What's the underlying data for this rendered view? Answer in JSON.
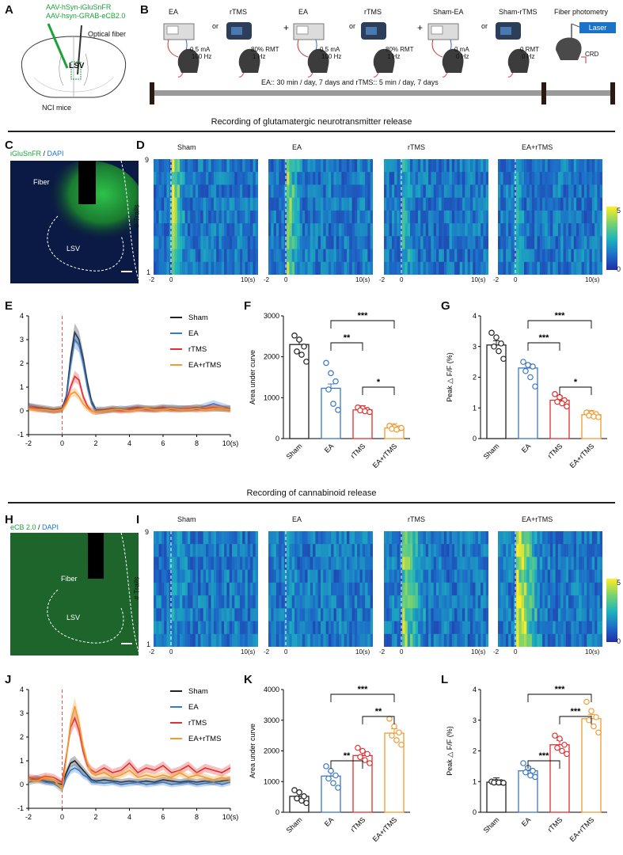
{
  "panelA": {
    "letter": "A",
    "virus1": "AAV-hSyn-iGluSnFR",
    "virus2": "AAV-hsyn-GRAB-eCB2.0",
    "optical_fiber": "Optical fiber",
    "region": "LSV",
    "mice": "NCI mice"
  },
  "panelB": {
    "letter": "B",
    "groups": [
      {
        "title": "EA",
        "line1": "0.5 mA",
        "line2": "100 Hz"
      },
      {
        "title": "rTMS",
        "line1": "80% RMT",
        "line2": "1 Hz"
      },
      {
        "title": "EA",
        "line1": "0.5 mA",
        "line2": "100 Hz"
      },
      {
        "title": "rTMS",
        "line1": "80% RMT",
        "line2": "1 Hz"
      },
      {
        "title": "Sham-EA",
        "line1": "0 mA",
        "line2": "0 Hz"
      },
      {
        "title": "Sham-rTMS",
        "line1": "0 RMT",
        "line2": "0 Hz"
      }
    ],
    "or": "or",
    "plus": "+",
    "fiber_photometry": "Fiber photometry",
    "laser": "Laser",
    "crd": "CRD",
    "timeline": "EA:: 30 min / day, 7 days and rTMS:: 5 min / day, 7 days"
  },
  "section1_title": "Recording of glutamatergic neurotransmitter release",
  "section2_title": "Recording of cannabinoid release",
  "panelC": {
    "letter": "C",
    "stain1": "iGluSnFR",
    "sep": " / ",
    "stain2": "DAPI",
    "fiber": "Fiber",
    "region": "LSV"
  },
  "panelH": {
    "letter": "H",
    "stain1": "eCB 2.0",
    "sep": " / ",
    "stain2": "DAPI",
    "fiber": "Fiber",
    "region": "LSV"
  },
  "panelD": {
    "letter": "D",
    "titles": [
      "Sham",
      "EA",
      "rTMS",
      "EA+rTMS"
    ],
    "ylabel": "# Trails",
    "ytop": "9",
    "ybottom": "1",
    "xticks": [
      "-2",
      "0",
      "10(s)"
    ],
    "cbar_max": "5",
    "cbar_min": "0"
  },
  "panelI": {
    "letter": "I",
    "titles": [
      "Sham",
      "EA",
      "rTMS",
      "EA+rTMS"
    ],
    "ylabel": "# Trails",
    "ytop": "9",
    "ybottom": "1",
    "xticks": [
      "-2",
      "0",
      "10(s)"
    ],
    "cbar_max": "5",
    "cbar_min": "0"
  },
  "chart_data": [
    {
      "id": "E",
      "type": "line",
      "x": [
        -2,
        -1.5,
        -1,
        -0.5,
        0,
        0.25,
        0.5,
        0.75,
        1,
        1.25,
        1.5,
        1.75,
        2,
        2.5,
        3,
        3.5,
        4,
        4.5,
        5,
        5.5,
        6,
        6.5,
        7,
        7.5,
        8,
        8.5,
        9,
        9.5,
        10
      ],
      "series": [
        {
          "name": "Sham",
          "color": "#222222",
          "values": [
            0.2,
            0.15,
            0.1,
            0.05,
            0.1,
            0.6,
            2.2,
            3.3,
            3.0,
            2.2,
            1.2,
            0.4,
            0.05,
            0.05,
            0.1,
            0.05,
            0.1,
            0.15,
            0.1,
            0.1,
            0.15,
            0.1,
            0.1,
            0.1,
            0.15,
            0.1,
            0.1,
            0.1,
            0.1
          ]
        },
        {
          "name": "EA",
          "color": "#3a78c2",
          "values": [
            0.2,
            0.1,
            0.05,
            0.0,
            0.05,
            0.5,
            1.9,
            3.0,
            2.8,
            2.0,
            1.0,
            0.3,
            0.0,
            0.0,
            0.05,
            0.1,
            0.05,
            0.1,
            0.1,
            0.05,
            0.1,
            0.15,
            0.1,
            0.1,
            0.1,
            0.2,
            0.3,
            0.2,
            0.1
          ]
        },
        {
          "name": "rTMS",
          "color": "#e03030",
          "values": [
            0.15,
            0.1,
            0.05,
            0.0,
            0.05,
            0.4,
            1.0,
            1.45,
            1.3,
            0.6,
            0.2,
            0.0,
            -0.05,
            0.0,
            0.05,
            0.0,
            0.05,
            0.1,
            0.05,
            0.05,
            0.1,
            0.05,
            0.05,
            0.1,
            0.05,
            0.1,
            0.15,
            0.1,
            0.05
          ]
        },
        {
          "name": "EA+rTMS",
          "color": "#f29a30",
          "values": [
            0.1,
            0.05,
            0.05,
            0.0,
            0.05,
            0.3,
            0.7,
            0.8,
            0.6,
            0.3,
            0.1,
            0.0,
            -0.05,
            0.0,
            0.05,
            0.05,
            0.0,
            0.05,
            0.1,
            0.05,
            0.05,
            0.1,
            0.05,
            0.05,
            0.1,
            0.05,
            0.1,
            0.1,
            0.05
          ]
        }
      ],
      "ylim": [
        -1,
        4
      ],
      "yticks": [
        -1,
        0,
        1,
        2,
        3,
        4
      ],
      "xticks": [
        -2,
        0,
        2,
        4,
        6,
        8,
        10
      ],
      "xlast": "10(s)"
    },
    {
      "id": "F",
      "type": "bar",
      "ylabel": "Area under curve",
      "categories": [
        "Sham",
        "EA",
        "rTMS",
        "EA+rTMS"
      ],
      "values": [
        2300,
        1230,
        700,
        260
      ],
      "points": [
        [
          2520,
          2420,
          2250,
          2130,
          2050,
          1880
        ],
        [
          1850,
          1600,
          1400,
          1200,
          850,
          700
        ],
        [
          760,
          740,
          700,
          690,
          670,
          650
        ],
        [
          310,
          280,
          250,
          240,
          220,
          260
        ]
      ],
      "colors": [
        "#222222",
        "#3a78c2",
        "#e03030",
        "#f29a30"
      ],
      "ylim": [
        0,
        3000
      ],
      "yticks": [
        0,
        1000,
        2000,
        3000
      ],
      "sig": [
        {
          "from": 1,
          "to": 3,
          "text": "***"
        },
        {
          "from": 1,
          "to": 2,
          "text": "**"
        },
        {
          "from": 2,
          "to": 3,
          "text": "*"
        }
      ]
    },
    {
      "id": "G",
      "type": "bar",
      "ylabel": "Peak △ F/F (%)",
      "categories": [
        "Sham",
        "EA",
        "rTMS",
        "EA+rTMS"
      ],
      "values": [
        3.05,
        2.3,
        1.25,
        0.78
      ],
      "points": [
        [
          3.45,
          3.3,
          3.1,
          3.0,
          2.85,
          2.6
        ],
        [
          2.5,
          2.4,
          2.35,
          2.2,
          2.0,
          1.7
        ],
        [
          1.45,
          1.35,
          1.25,
          1.2,
          1.15,
          1.05
        ],
        [
          0.85,
          0.82,
          0.8,
          0.75,
          0.72,
          0.7
        ]
      ],
      "colors": [
        "#222222",
        "#3a78c2",
        "#e03030",
        "#f29a30"
      ],
      "ylim": [
        0,
        4
      ],
      "yticks": [
        0,
        1,
        2,
        3,
        4
      ],
      "sig": [
        {
          "from": 1,
          "to": 3,
          "text": "***"
        },
        {
          "from": 1,
          "to": 2,
          "text": "***"
        },
        {
          "from": 2,
          "to": 3,
          "text": "*"
        }
      ]
    },
    {
      "id": "J",
      "type": "line",
      "x": [
        -2,
        -1.5,
        -1,
        -0.5,
        0,
        0.25,
        0.5,
        0.75,
        1,
        1.25,
        1.5,
        1.75,
        2,
        2.5,
        3,
        3.5,
        4,
        4.5,
        5,
        5.5,
        6,
        6.5,
        7,
        7.5,
        8,
        8.5,
        9,
        9.5,
        10
      ],
      "series": [
        {
          "name": "Sham",
          "color": "#222222",
          "values": [
            0.2,
            0.25,
            0.15,
            0.1,
            0.0,
            0.5,
            0.9,
            1.0,
            0.8,
            0.6,
            0.4,
            0.2,
            0.15,
            0.2,
            0.15,
            0.1,
            0.15,
            0.1,
            0.15,
            0.1,
            0.2,
            0.15,
            0.1,
            0.15,
            0.1,
            0.15,
            0.1,
            0.15,
            0.2
          ]
        },
        {
          "name": "EA",
          "color": "#3a78c2",
          "values": [
            0.1,
            0.2,
            0.1,
            0.05,
            -0.2,
            0.3,
            0.6,
            0.7,
            0.6,
            0.4,
            0.3,
            0.1,
            0.1,
            0.05,
            0.1,
            0.0,
            0.05,
            0.1,
            0.0,
            0.05,
            0.1,
            0.0,
            0.05,
            0.1,
            0.0,
            0.05,
            0.1,
            0.0,
            0.1
          ]
        },
        {
          "name": "rTMS",
          "color": "#e03030",
          "values": [
            0.3,
            0.25,
            0.35,
            0.3,
            0.1,
            1.2,
            2.4,
            2.8,
            2.3,
            1.4,
            0.8,
            0.6,
            0.5,
            0.7,
            0.5,
            0.6,
            0.9,
            0.5,
            0.7,
            0.6,
            0.8,
            0.5,
            0.6,
            0.8,
            0.5,
            0.7,
            0.6,
            0.5,
            0.7
          ]
        },
        {
          "name": "EA+rTMS",
          "color": "#f29a30",
          "values": [
            0.2,
            0.15,
            0.3,
            0.2,
            -0.2,
            1.1,
            2.6,
            3.3,
            2.6,
            1.6,
            0.9,
            0.5,
            0.4,
            0.5,
            0.3,
            0.4,
            0.6,
            0.3,
            0.4,
            0.3,
            0.4,
            0.3,
            0.5,
            0.3,
            0.4,
            0.3,
            0.2,
            0.3,
            0.2
          ]
        }
      ],
      "ylim": [
        -1,
        4
      ],
      "yticks": [
        -1,
        0,
        1,
        2,
        3,
        4
      ],
      "xticks": [
        -2,
        0,
        2,
        4,
        6,
        8,
        10
      ],
      "xlast": "10(s)"
    },
    {
      "id": "K",
      "type": "bar",
      "ylabel": "Area under curve",
      "categories": [
        "Sham",
        "EA",
        "rTMS",
        "EA+rTMS"
      ],
      "values": [
        520,
        1180,
        1850,
        2580
      ],
      "points": [
        [
          720,
          650,
          520,
          450,
          380,
          300
        ],
        [
          1500,
          1350,
          1200,
          1100,
          950,
          800
        ],
        [
          2100,
          2000,
          1900,
          1800,
          1700,
          1600
        ],
        [
          3050,
          2800,
          2600,
          2500,
          2350,
          2200
        ]
      ],
      "colors": [
        "#222222",
        "#3a78c2",
        "#e03030",
        "#f29a30"
      ],
      "ylim": [
        0,
        4000
      ],
      "yticks": [
        0,
        1000,
        2000,
        3000,
        4000
      ],
      "sig": [
        {
          "from": 1,
          "to": 3,
          "text": "***"
        },
        {
          "from": 2,
          "to": 3,
          "text": "**"
        },
        {
          "from": 1,
          "to": 2,
          "text": "**"
        }
      ]
    },
    {
      "id": "L",
      "type": "bar",
      "ylabel": "Peak △ F/F (%)",
      "categories": [
        "Sham",
        "EA",
        "rTMS",
        "EA+rTMS"
      ],
      "values": [
        0.98,
        1.35,
        2.2,
        3.05
      ],
      "points": [
        [
          1.0,
          0.99,
          0.98,
          0.97,
          0.97,
          0.96
        ],
        [
          1.6,
          1.45,
          1.35,
          1.3,
          1.2,
          1.15
        ],
        [
          2.5,
          2.4,
          2.2,
          2.1,
          2.0,
          1.9
        ],
        [
          3.6,
          3.3,
          3.1,
          3.0,
          2.8,
          2.6
        ]
      ],
      "colors": [
        "#222222",
        "#3a78c2",
        "#e03030",
        "#f29a30"
      ],
      "ylim": [
        0,
        4
      ],
      "yticks": [
        0,
        1,
        2,
        3,
        4
      ],
      "sig": [
        {
          "from": 1,
          "to": 3,
          "text": "***"
        },
        {
          "from": 2,
          "to": 3,
          "text": "***"
        },
        {
          "from": 1,
          "to": 2,
          "text": "***"
        }
      ]
    }
  ]
}
